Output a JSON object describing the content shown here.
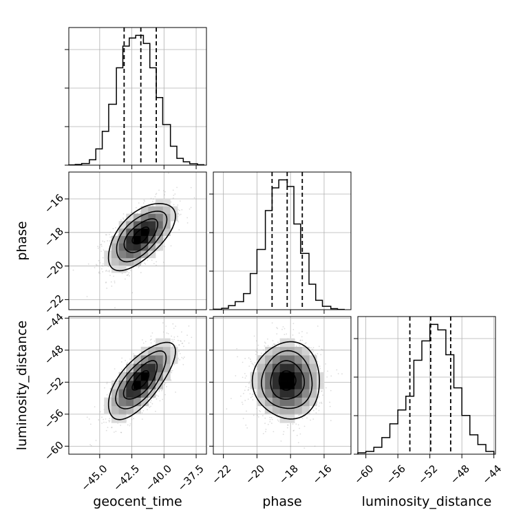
{
  "chart_data": {
    "type": "corner",
    "parameters": [
      {
        "name": "geocent_time",
        "label": "geocent_time",
        "range": [
          -47.4,
          -36.7
        ],
        "ticks": [
          -45.0,
          -42.5,
          -40.0,
          -37.5
        ],
        "tick_labels": [
          "−45.0",
          "−42.5",
          "−40.0",
          "−37.5"
        ],
        "quantiles": [
          -43.1,
          -41.8,
          -40.6
        ],
        "histogram": {
          "bins": [
            -47.4,
            -46.9,
            -46.4,
            -45.8,
            -45.3,
            -44.8,
            -44.3,
            -43.7,
            -43.2,
            -42.7,
            -42.2,
            -41.6,
            -41.1,
            -40.6,
            -40.1,
            -39.5,
            -39.0,
            -38.5,
            -38.0,
            -37.4,
            -36.9
          ],
          "counts": [
            0.002,
            0.005,
            0.012,
            0.04,
            0.12,
            0.25,
            0.45,
            0.72,
            0.88,
            0.94,
            0.96,
            0.9,
            0.72,
            0.5,
            0.3,
            0.14,
            0.05,
            0.025,
            0.01,
            0.003
          ]
        }
      },
      {
        "name": "phase",
        "label": "phase",
        "range": [
          -22.6,
          -14.4
        ],
        "ticks": [
          -22,
          -20,
          -18,
          -16
        ],
        "tick_labels": [
          "−22",
          "−20",
          "−18",
          "−16"
        ],
        "quantiles": [
          -19.1,
          -18.2,
          -17.3
        ],
        "histogram": {
          "bins": [
            -22.6,
            -22.1,
            -21.7,
            -21.3,
            -20.8,
            -20.4,
            -20.0,
            -19.5,
            -19.1,
            -18.7,
            -18.2,
            -17.8,
            -17.4,
            -16.9,
            -16.5,
            -16.1,
            -15.6,
            -15.2,
            -14.8
          ],
          "counts": [
            0.003,
            0.01,
            0.03,
            0.06,
            0.12,
            0.27,
            0.45,
            0.74,
            0.91,
            0.97,
            0.92,
            0.64,
            0.42,
            0.19,
            0.07,
            0.025,
            0.008,
            0.002
          ]
        }
      },
      {
        "name": "luminosity_distance",
        "label": "luminosity_distance",
        "range": [
          -61.0,
          -43.8
        ],
        "ticks": [
          -60,
          -56,
          -52,
          -48,
          -44
        ],
        "tick_labels": [
          "−60",
          "−56",
          "−52",
          "−48",
          "−44"
        ],
        "quantiles": [
          -54.5,
          -51.9,
          -49.4
        ],
        "histogram": {
          "bins": [
            -61.0,
            -60.0,
            -59.0,
            -58.0,
            -57.0,
            -56.0,
            -55.0,
            -54.0,
            -53.0,
            -52.0,
            -51.0,
            -50.0,
            -49.0,
            -48.0,
            -47.0,
            -46.0,
            -45.0,
            -44.0
          ],
          "counts": [
            0.01,
            0.02,
            0.05,
            0.12,
            0.22,
            0.32,
            0.42,
            0.68,
            0.82,
            0.94,
            0.9,
            0.72,
            0.48,
            0.28,
            0.14,
            0.07,
            0.02
          ]
        }
      }
    ],
    "pairs": [
      {
        "x": "geocent_time",
        "y": "phase",
        "mean": [
          -41.8,
          -18.2
        ],
        "std": [
          1.3,
          1.0
        ],
        "correlation": 0.6,
        "contour_levels_sigma": [
          0.5,
          1.0,
          1.5,
          2.0
        ]
      },
      {
        "x": "geocent_time",
        "y": "luminosity_distance",
        "mean": [
          -41.8,
          -51.8
        ],
        "std": [
          1.3,
          2.4
        ],
        "correlation": 0.7,
        "contour_levels_sigma": [
          0.5,
          1.0,
          1.5,
          2.0
        ]
      },
      {
        "x": "phase",
        "y": "luminosity_distance",
        "mean": [
          -18.2,
          -51.8
        ],
        "std": [
          1.0,
          2.4
        ],
        "correlation": 0.0,
        "contour_levels_sigma": [
          0.5,
          1.0,
          1.5,
          2.0
        ]
      }
    ],
    "grid": true,
    "title": "",
    "colors": {
      "line": "#000000",
      "grid": "#b0b0b0",
      "scatter": "#9a9a9a"
    }
  }
}
